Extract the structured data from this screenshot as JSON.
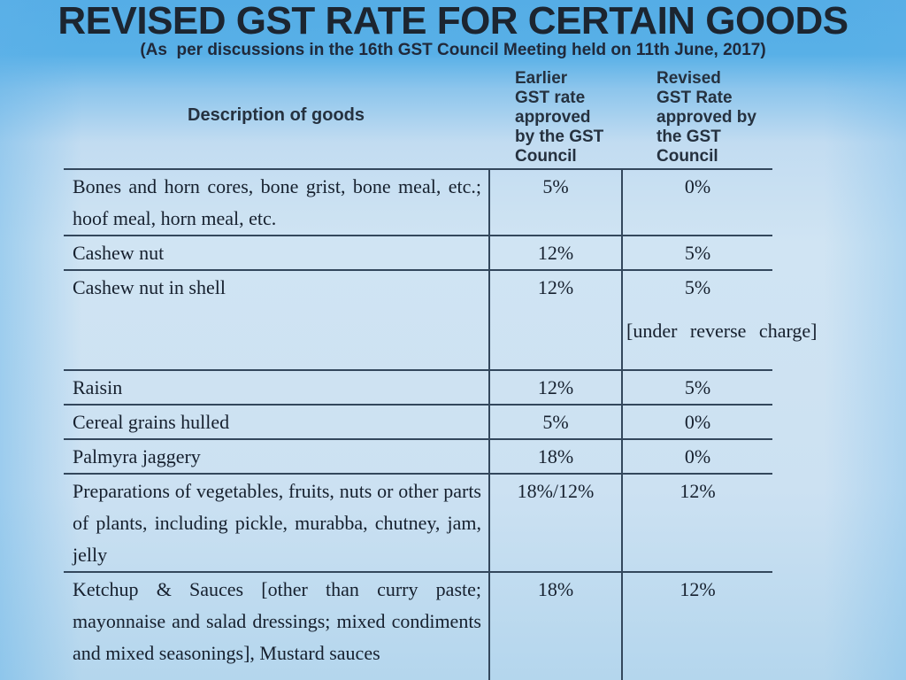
{
  "title": "REVISED GST RATE FOR CERTAIN GOODS",
  "subtitle": "(As  per discussions in the 16th GST Council Meeting held on 11th June, 2017)",
  "colors": {
    "background_top": "#56aee7",
    "background_table_area": "#d0e4f3",
    "rule_line": "#33475c",
    "title_text": "#1c2530",
    "body_text": "#16202e"
  },
  "table": {
    "columns": {
      "description": "Description of goods",
      "earlier": "Earlier\nGST rate\napproved\nby the GST\nCouncil",
      "revised": "Revised\nGST Rate\napproved by\nthe GST\nCouncil"
    },
    "rows": [
      {
        "description": "Bones and horn cores, bone grist, bone meal, etc.; hoof meal, horn meal, etc.",
        "earlier": "5%",
        "revised": "0%"
      },
      {
        "description": "Cashew nut",
        "earlier": "12%",
        "revised": "5%"
      },
      {
        "description": "Cashew nut in shell",
        "earlier": "12%",
        "revised": "5%",
        "revised_note": "[under reverse charge]"
      },
      {
        "description": "Raisin",
        "earlier": "12%",
        "revised": "5%"
      },
      {
        "description": "Cereal grains hulled",
        "earlier": "5%",
        "revised": "0%"
      },
      {
        "description": "Palmyra jaggery",
        "earlier": "18%",
        "revised": "0%"
      },
      {
        "description": "Preparations of vegetables, fruits, nuts or other parts of plants, including pickle, murabba, chutney, jam, jelly",
        "earlier": "18%/12%",
        "revised": "12%"
      },
      {
        "description": "Ketchup & Sauces [other than curry paste; mayonnaise and salad dressings; mixed condiments and mixed seasonings], Mustard sauces",
        "earlier": "18%",
        "revised": "12%"
      }
    ]
  }
}
